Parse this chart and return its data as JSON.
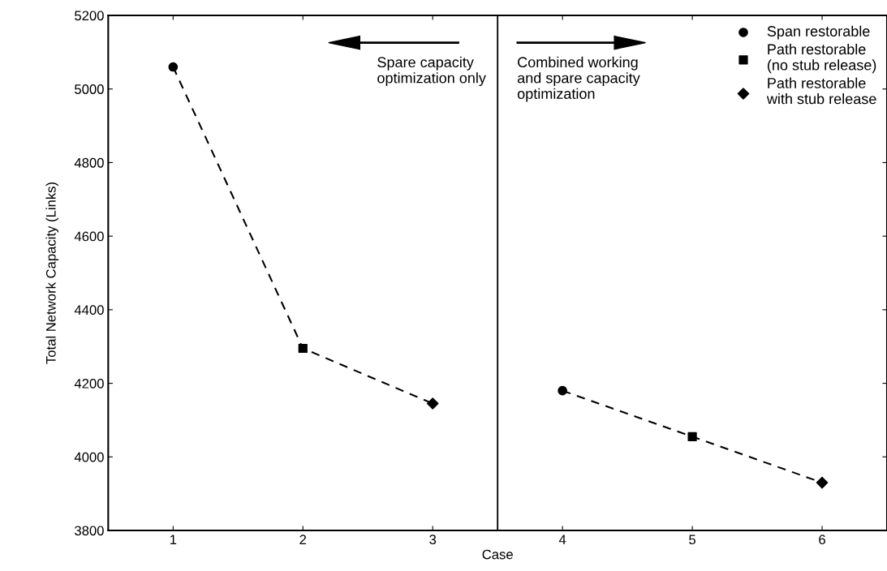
{
  "chart_data": {
    "type": "scatter",
    "xlabel": "Case",
    "ylabel": "Total Network Capacity (Links)",
    "xlim": [
      0.5,
      6.5
    ],
    "xticks": [
      1,
      2,
      3,
      4,
      5,
      6
    ],
    "ylim": [
      3800,
      5200
    ],
    "yticks": [
      3800,
      4000,
      4200,
      4400,
      4600,
      4800,
      5000,
      5200
    ],
    "grid": false,
    "legend": "top right",
    "series": [
      {
        "type": "line",
        "color": "#000000",
        "x": [
          1,
          2,
          3
        ],
        "values": [
          5060,
          4295,
          4145
        ],
        "line_style": "dashed",
        "marker": "none"
      },
      {
        "type": "line",
        "color": "#000000",
        "x": [
          4,
          5,
          6
        ],
        "values": [
          4180,
          4055,
          3930
        ],
        "line_style": "dashed",
        "marker": "none"
      },
      {
        "name": "Span restorable",
        "color": "#000000",
        "x": [
          1,
          4
        ],
        "values": [
          5060,
          4180
        ],
        "marker": "circle"
      },
      {
        "name": "Path restorable\n(no stub release)",
        "color": "#000000",
        "x": [
          2,
          5
        ],
        "values": [
          4295,
          4055
        ],
        "marker": "square"
      },
      {
        "name": "Path restorable\nwith stub release",
        "color": "#000000",
        "x": [
          3,
          6
        ],
        "values": [
          4145,
          3930
        ],
        "marker": "diamond"
      }
    ],
    "ref_lines": [
      {
        "axis": "x",
        "value": 3.5,
        "color": "#000000",
        "line_style": "solid"
      }
    ],
    "annotations": [
      "Spare capacity\noptimization only",
      "Combined working\nand spare capacity\noptimization"
    ]
  }
}
